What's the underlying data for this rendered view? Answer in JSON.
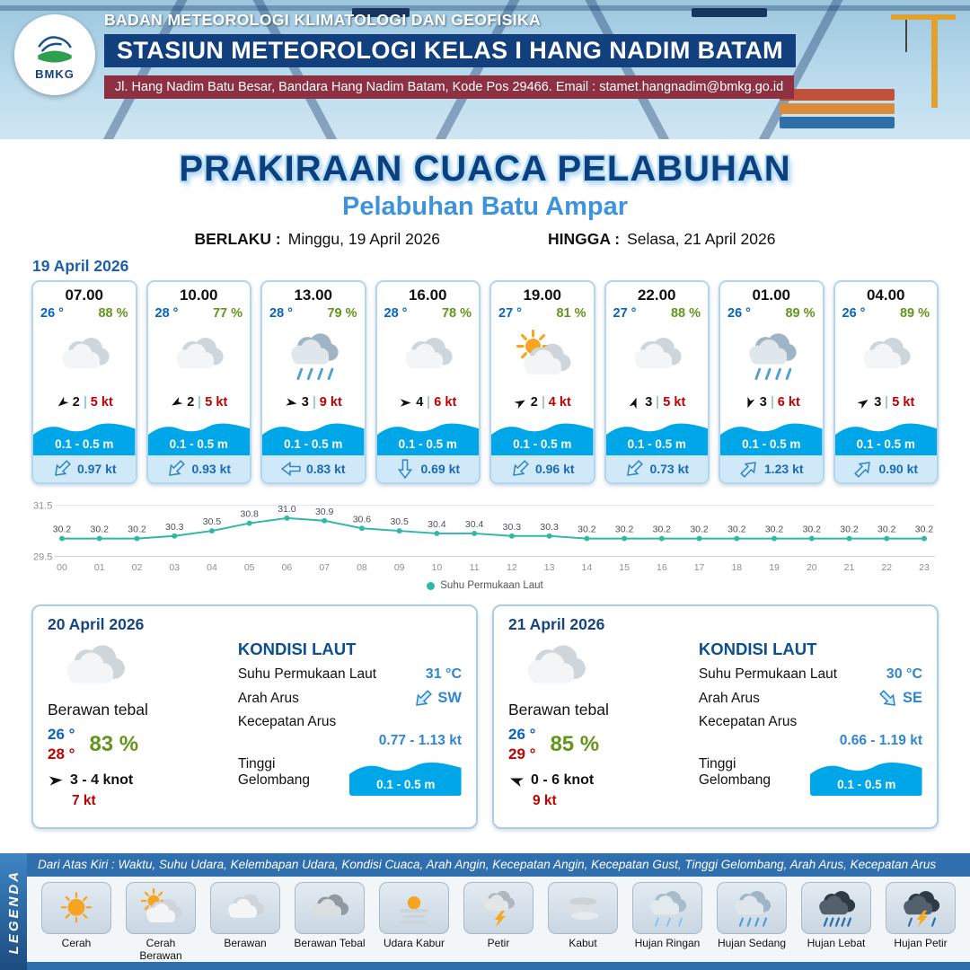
{
  "header": {
    "logo_text": "BMKG",
    "agency": "BADAN METEOROLOGI KLIMATOLOGI DAN GEOFISIKA",
    "station": "STASIUN METEOROLOGI KELAS I HANG NADIM BATAM",
    "address": "Jl. Hang Nadim Batu Besar, Bandara Hang Nadim Batam, Kode Pos 29466. Email : stamet.hangnadim@bmkg.go.id"
  },
  "title": {
    "main": "PRAKIRAAN CUACA PELABUHAN",
    "subtitle": "Pelabuhan Batu Ampar",
    "berlaku_label": "BERLAKU :",
    "berlaku_value": "Minggu, 19 April 2026",
    "hingga_label": "HINGGA :",
    "hingga_value": "Selasa, 21 April 2026"
  },
  "forecast": {
    "date_label": "19 April 2026",
    "cards": [
      {
        "time": "07.00",
        "temp": "26 °",
        "humidity": "88 %",
        "icon": "cloudy",
        "wind_rot": 140,
        "wind_force": "2",
        "wind_speed": "5 kt",
        "wave": "0.1 - 0.5 m",
        "current_rot": 135,
        "current": "0.97 kt"
      },
      {
        "time": "10.00",
        "temp": "28 °",
        "humidity": "77 %",
        "icon": "cloudy",
        "wind_rot": 150,
        "wind_force": "2",
        "wind_speed": "5 kt",
        "wave": "0.1 - 0.5 m",
        "current_rot": 135,
        "current": "0.93 kt"
      },
      {
        "time": "13.00",
        "temp": "28 °",
        "humidity": "79 %",
        "icon": "moderate-rain",
        "wind_rot": 10,
        "wind_force": "3",
        "wind_speed": "9 kt",
        "wave": "0.1 - 0.5 m",
        "current_rot": 180,
        "current": "0.83 kt"
      },
      {
        "time": "16.00",
        "temp": "28 °",
        "humidity": "78 %",
        "icon": "cloudy",
        "wind_rot": 0,
        "wind_force": "4",
        "wind_speed": "6 kt",
        "wave": "0.1 - 0.5 m",
        "current_rot": 90,
        "current": "0.69 kt"
      },
      {
        "time": "19.00",
        "temp": "27 °",
        "humidity": "81 %",
        "icon": "partly-cloudy",
        "wind_rot": -30,
        "wind_force": "2",
        "wind_speed": "4 kt",
        "wave": "0.1 - 0.5 m",
        "current_rot": 135,
        "current": "0.96 kt"
      },
      {
        "time": "22.00",
        "temp": "27 °",
        "humidity": "88 %",
        "icon": "cloudy",
        "wind_rot": -70,
        "wind_force": "3",
        "wind_speed": "5 kt",
        "wave": "0.1 - 0.5 m",
        "current_rot": 135,
        "current": "0.73 kt"
      },
      {
        "time": "01.00",
        "temp": "26 °",
        "humidity": "89 %",
        "icon": "moderate-rain",
        "wind_rot": 110,
        "wind_force": "3",
        "wind_speed": "6 kt",
        "wave": "0.1 - 0.5 m",
        "current_rot": -45,
        "current": "1.23 kt"
      },
      {
        "time": "04.00",
        "temp": "26 °",
        "humidity": "89 %",
        "icon": "cloudy",
        "wind_rot": -35,
        "wind_force": "3",
        "wind_speed": "5 kt",
        "wave": "0.1 - 0.5 m",
        "current_rot": -45,
        "current": "0.90 kt"
      }
    ]
  },
  "chart_data": {
    "type": "line",
    "x": [
      "00",
      "01",
      "02",
      "03",
      "04",
      "05",
      "06",
      "07",
      "08",
      "09",
      "10",
      "11",
      "12",
      "13",
      "14",
      "15",
      "16",
      "17",
      "18",
      "19",
      "20",
      "21",
      "22",
      "23"
    ],
    "series": [
      {
        "name": "Suhu Permukaan Laut",
        "values": [
          30.2,
          30.2,
          30.2,
          30.3,
          30.5,
          30.8,
          31.0,
          30.9,
          30.6,
          30.5,
          30.4,
          30.4,
          30.3,
          30.3,
          30.2,
          30.2,
          30.2,
          30.2,
          30.2,
          30.2,
          30.2,
          30.2,
          30.2,
          30.2
        ]
      }
    ],
    "ylim": [
      29.5,
      31.5
    ],
    "line_color": "#2fb8a8",
    "grid": true,
    "legend_position": "bottom"
  },
  "days": [
    {
      "date": "20 April 2026",
      "icon": "cloudy",
      "condition": "Berawan tebal",
      "temp_min": "26 °",
      "temp_max": "28 °",
      "humidity": "83 %",
      "wind_rot": -5,
      "wind": "3 - 4 knot",
      "gust": "7 kt",
      "sea": {
        "title": "KONDISI LAUT",
        "sst_label": "Suhu Permukaan Laut",
        "sst": "31 °C",
        "dir_label": "Arah Arus",
        "dir": "SW",
        "dir_rot": 135,
        "speed_label": "Kecepatan Arus",
        "speed": "0.77 - 1.13 kt",
        "wave_label": "Tinggi Gelombang",
        "wave": "0.1 - 0.5 m"
      }
    },
    {
      "date": "21 April 2026",
      "icon": "cloudy",
      "condition": "Berawan tebal",
      "temp_min": "26 °",
      "temp_max": "29 °",
      "humidity": "85 %",
      "wind_rot": 200,
      "wind": "0 - 6 knot",
      "gust": "9 kt",
      "sea": {
        "title": "KONDISI LAUT",
        "sst_label": "Suhu Permukaan Laut",
        "sst": "30 °C",
        "dir_label": "Arah Arus",
        "dir": "SE",
        "dir_rot": 45,
        "speed_label": "Kecepatan Arus",
        "speed": "0.66 - 1.19 kt",
        "wave_label": "Tinggi Gelombang",
        "wave": "0.1 - 0.5 m"
      }
    }
  ],
  "legend": {
    "vertical_label": "LEGENDA",
    "note": "Dari Atas Kiri : Waktu, Suhu Udara, Kelembapan Udara, Kondisi Cuaca, Arah Angin, Kecepatan Angin, Kecepatan Gust, Tinggi Gelombang, Arah Arus, Kecepatan Arus",
    "items": [
      {
        "label": "Cerah",
        "icon": "sunny"
      },
      {
        "label": "Cerah Berawan",
        "icon": "partly-cloudy"
      },
      {
        "label": "Berawan",
        "icon": "cloudy"
      },
      {
        "label": "Berawan Tebal",
        "icon": "cloudy-dark"
      },
      {
        "label": "Udara Kabur",
        "icon": "haze"
      },
      {
        "label": "Petir",
        "icon": "thunder"
      },
      {
        "label": "Kabut",
        "icon": "fog"
      },
      {
        "label": "Hujan Ringan",
        "icon": "light-rain"
      },
      {
        "label": "Hujan Sedang",
        "icon": "moderate-rain"
      },
      {
        "label": "Hujan Lebat",
        "icon": "heavy-rain"
      },
      {
        "label": "Hujan Petir",
        "icon": "thunderstorm"
      }
    ]
  },
  "colors": {
    "station_band_blue": "#12407e",
    "address_band_red": "#8c3042",
    "title_blue": "#0d3e7e",
    "subtitle_blue": "#3d93dc",
    "wave_blue": "#00a7e8",
    "temp_blue": "#0563c1",
    "humidity_green": "#63951d",
    "speed_red": "#c00000",
    "sea_value_blue": "#2f86d2",
    "legend_bar_blue": "#2f6fad",
    "sst_line_teal": "#2fb8a8"
  }
}
